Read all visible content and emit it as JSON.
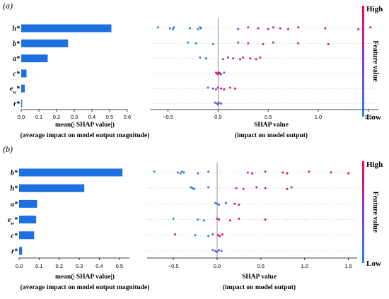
{
  "figure": {
    "colorbar": {
      "high": "High",
      "low": "Low",
      "label": "Feature value"
    }
  },
  "chart_data": [
    {
      "panel_label": "(a)",
      "bar": {
        "type": "bar",
        "orientation": "horizontal",
        "categories": [
          "h*",
          "b*",
          "a*",
          "c*",
          "e_w*",
          "r*"
        ],
        "values": [
          0.51,
          0.265,
          0.15,
          0.03,
          0.02,
          0.005
        ],
        "xticks": [
          0.0,
          0.1,
          0.2,
          0.3,
          0.4,
          0.5,
          0.6
        ],
        "xlim": [
          0,
          0.6
        ],
        "xlabel": [
          "mean(| SHAP value|)",
          "(average impact on model output magnitude)"
        ],
        "color": "#1E6FE0"
      },
      "beeswarm": {
        "type": "scatter",
        "features": [
          "h*",
          "b*",
          "a*",
          "c*",
          "e_w*",
          "r*"
        ],
        "xticks": [
          -0.5,
          0.0,
          0.5,
          1.0,
          1.5
        ],
        "xlim": [
          -0.68,
          1.6
        ],
        "xlabel": [
          "SHAP value",
          "(impact on model output)"
        ],
        "rows": [
          [
            [
              -0.6,
              0.05
            ],
            [
              -0.48,
              0.15
            ],
            [
              -0.45,
              0.1
            ],
            [
              -0.44,
              0.08
            ],
            [
              -0.28,
              0.05
            ],
            [
              -0.2,
              0.1
            ],
            [
              -0.18,
              0.12
            ],
            [
              -0.17,
              0.1
            ],
            [
              0.2,
              0.45
            ],
            [
              0.3,
              0.65
            ],
            [
              0.4,
              0.75
            ],
            [
              0.5,
              0.8
            ],
            [
              0.55,
              0.82
            ],
            [
              0.62,
              0.85
            ],
            [
              0.7,
              0.88
            ],
            [
              0.8,
              0.9
            ],
            [
              1.07,
              0.92
            ],
            [
              1.4,
              0.95
            ],
            [
              1.52,
              0.97
            ]
          ],
          [
            [
              -0.3,
              0.05
            ],
            [
              -0.22,
              0.08
            ],
            [
              -0.05,
              0.12
            ],
            [
              0.2,
              0.45
            ],
            [
              0.3,
              0.6
            ],
            [
              0.45,
              0.78
            ],
            [
              0.55,
              0.82
            ],
            [
              0.8,
              0.9
            ],
            [
              1.1,
              0.95
            ]
          ],
          [
            [
              -0.18,
              0.05
            ],
            [
              -0.12,
              0.1
            ],
            [
              0.05,
              0.4
            ],
            [
              0.1,
              0.6
            ],
            [
              0.15,
              0.62
            ],
            [
              0.22,
              0.72
            ],
            [
              0.25,
              0.78
            ],
            [
              0.32,
              0.85
            ],
            [
              0.38,
              0.9
            ],
            [
              0.42,
              0.92
            ]
          ],
          [
            [
              -0.02,
              0.85
            ],
            [
              -0.01,
              0.9
            ],
            [
              0.0,
              0.92
            ],
            [
              0.01,
              0.88
            ],
            [
              0.02,
              0.8
            ],
            [
              0.03,
              0.5
            ],
            [
              0.06,
              0.1
            ]
          ],
          [
            [
              -0.1,
              0.1
            ],
            [
              -0.05,
              0.3
            ],
            [
              -0.02,
              0.5
            ],
            [
              0.0,
              0.7
            ],
            [
              0.03,
              0.8
            ],
            [
              0.06,
              0.85
            ],
            [
              0.12,
              0.88
            ],
            [
              0.17,
              0.9
            ]
          ],
          [
            [
              -0.03,
              0.3
            ],
            [
              -0.01,
              0.6
            ],
            [
              0.0,
              0.5
            ],
            [
              0.01,
              0.4
            ],
            [
              0.03,
              0.2
            ]
          ]
        ]
      }
    },
    {
      "panel_label": "(b)",
      "bar": {
        "type": "bar",
        "orientation": "horizontal",
        "categories": [
          "b*",
          "h*",
          "a*",
          "e_w*",
          "c*",
          "r*"
        ],
        "values": [
          0.515,
          0.325,
          0.09,
          0.085,
          0.075,
          0.015
        ],
        "xticks": [
          0.0,
          0.1,
          0.2,
          0.3,
          0.4,
          0.5
        ],
        "xlim": [
          0,
          0.55
        ],
        "xlabel": [
          "mean(| SHAP value|)",
          "(average impact on model output magnitude)"
        ],
        "color": "#1E6FE0"
      },
      "beeswarm": {
        "type": "scatter",
        "features": [
          "b*",
          "h*",
          "a*",
          "e_w*",
          "c*",
          "r*"
        ],
        "xticks": [
          -0.5,
          0.0,
          0.5,
          1.0,
          1.5
        ],
        "xlim": [
          -0.8,
          1.6
        ],
        "xlabel": [
          "SHAP value",
          "(impact on model output)"
        ],
        "rows": [
          [
            [
              -0.72,
              0.05
            ],
            [
              -0.45,
              0.08
            ],
            [
              -0.42,
              0.1
            ],
            [
              -0.4,
              0.12
            ],
            [
              -0.38,
              0.1
            ],
            [
              -0.22,
              0.1
            ],
            [
              -0.1,
              0.15
            ],
            [
              0.35,
              0.72
            ],
            [
              0.4,
              0.78
            ],
            [
              0.55,
              0.85
            ],
            [
              0.75,
              0.88
            ],
            [
              0.8,
              0.9
            ],
            [
              1.05,
              0.95
            ],
            [
              1.3,
              0.97
            ],
            [
              1.5,
              0.98
            ]
          ],
          [
            [
              -0.3,
              0.05
            ],
            [
              -0.28,
              0.1
            ],
            [
              -0.26,
              0.12
            ],
            [
              -0.1,
              0.2
            ],
            [
              0.22,
              0.6
            ],
            [
              0.3,
              0.7
            ],
            [
              0.45,
              0.8
            ],
            [
              0.55,
              0.85
            ],
            [
              0.8,
              0.9
            ],
            [
              0.85,
              0.95
            ]
          ],
          [
            [
              -0.02,
              0.1
            ],
            [
              0.0,
              0.2
            ],
            [
              0.02,
              0.2
            ],
            [
              0.1,
              0.6
            ],
            [
              0.2,
              0.8
            ],
            [
              0.25,
              0.85
            ]
          ],
          [
            [
              -0.5,
              0.05
            ],
            [
              -0.22,
              0.1
            ],
            [
              -0.15,
              0.15
            ],
            [
              0.0,
              0.7
            ],
            [
              0.02,
              0.8
            ],
            [
              0.15,
              0.85
            ],
            [
              0.25,
              0.9
            ],
            [
              0.55,
              0.95
            ]
          ],
          [
            [
              -0.48,
              0.9
            ],
            [
              -0.25,
              0.1
            ],
            [
              -0.1,
              0.2
            ],
            [
              -0.05,
              0.3
            ],
            [
              0.01,
              0.8
            ],
            [
              0.03,
              0.85
            ],
            [
              0.06,
              0.9
            ]
          ],
          [
            [
              -0.05,
              0.2
            ],
            [
              -0.02,
              0.3
            ],
            [
              0.0,
              0.5
            ],
            [
              0.02,
              0.4
            ],
            [
              0.05,
              0.1
            ]
          ]
        ]
      }
    }
  ]
}
